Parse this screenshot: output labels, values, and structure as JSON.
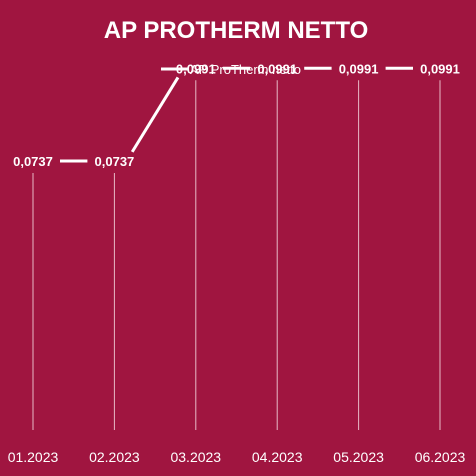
{
  "chart_data": {
    "type": "line",
    "title": "AP PROTHERM NETTO",
    "categories": [
      "01.2023",
      "02.2023",
      "03.2023",
      "04.2023",
      "05.2023",
      "06.2023"
    ],
    "series": [
      {
        "name": "AP ProTherm netto",
        "values": [
          0.0737,
          0.0737,
          0.0991,
          0.0991,
          0.0991,
          0.0991
        ],
        "labels": [
          "0,0737",
          "0,0737",
          "0,0991",
          "0,0991",
          "0,0991",
          "0,0991"
        ]
      }
    ],
    "xlabel": "",
    "ylabel": "",
    "ylim": [
      0,
      0.14
    ],
    "grid": false,
    "drop_lines": true,
    "legend_position": "top-center",
    "colors": {
      "background": "#a01540",
      "line": "#ffffff",
      "drop_line": "#e7b9c6"
    }
  }
}
